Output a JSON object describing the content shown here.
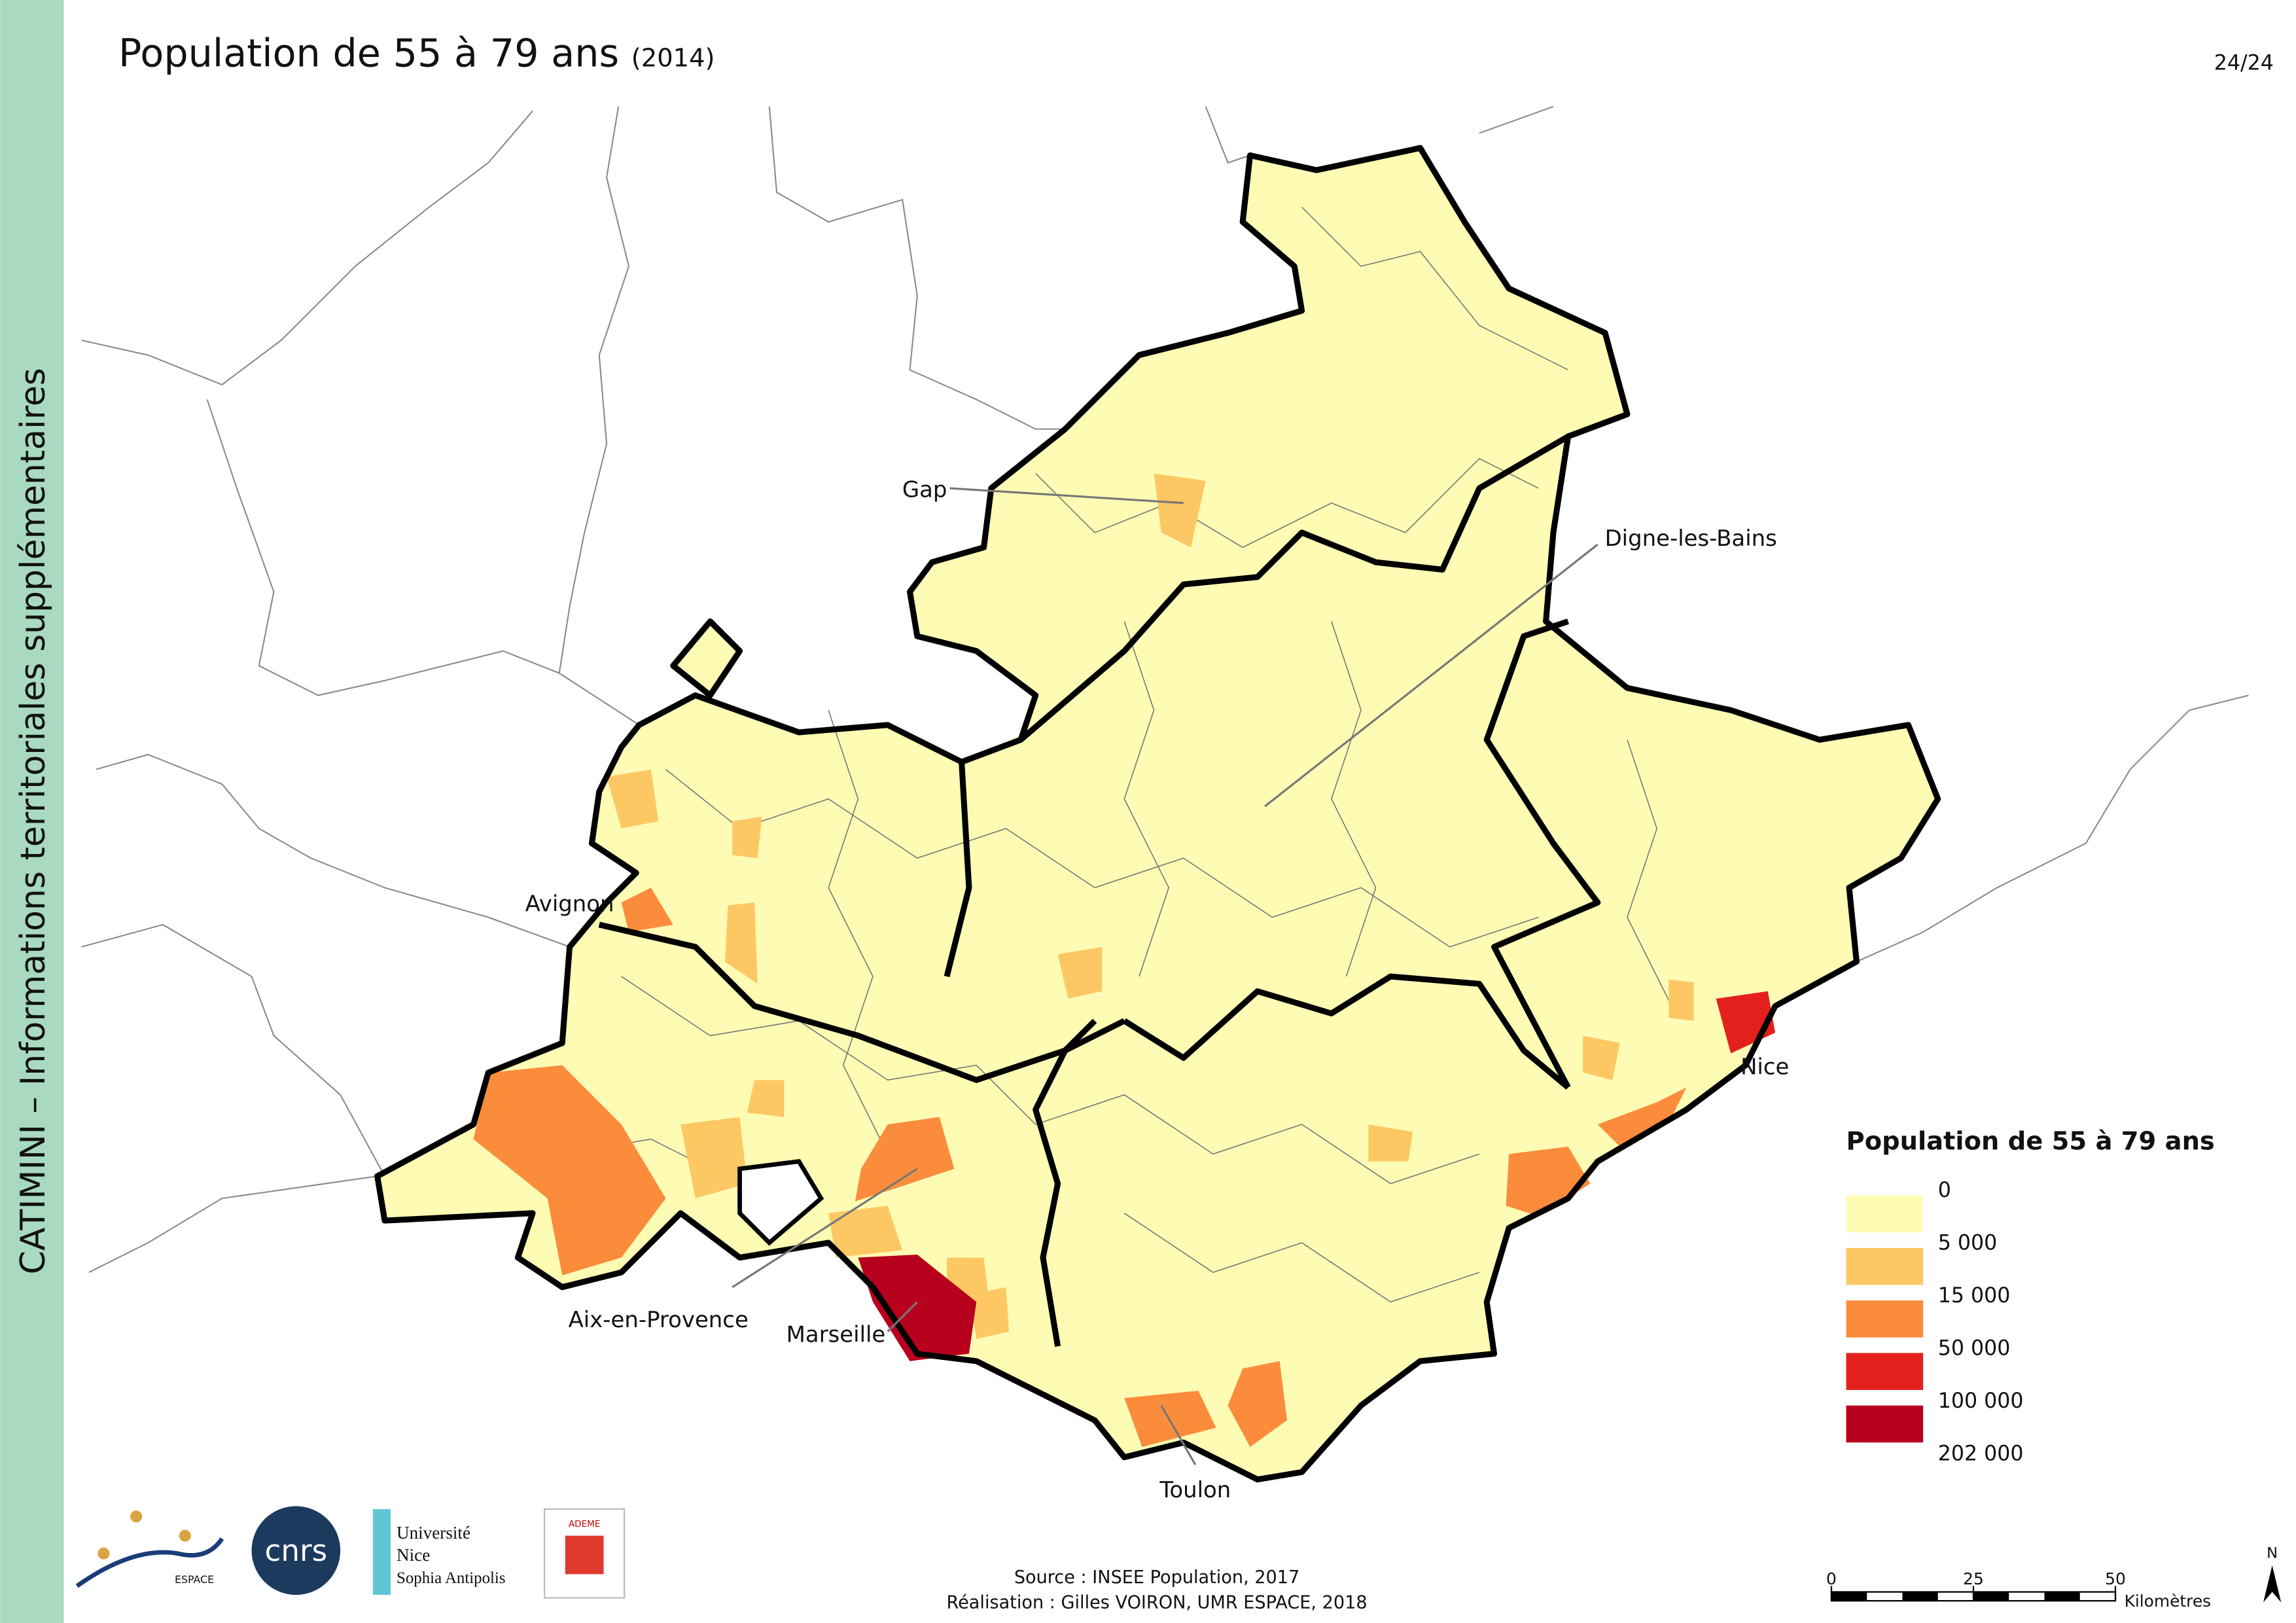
{
  "header": {
    "title": "Population de 55 à 79 ans",
    "subtitle": "(2014)",
    "page": "24/24"
  },
  "sidebar": "CATIMINI – Informations territoriales supplémentaires",
  "map": {
    "places": [
      "Gap",
      "Digne-les-Bains",
      "Avignon",
      "Nice",
      "Aix-en-Provence",
      "Marseille",
      "Toulon"
    ]
  },
  "legend": {
    "title": "Population de 55 à 79 ans",
    "breaks": [
      0,
      {
        "value": 5000,
        "label": "5 000"
      },
      {
        "value": 15000,
        "label": "15 000"
      },
      {
        "value": 50000,
        "label": "50 000"
      },
      {
        "value": 100000,
        "label": "100 000"
      },
      {
        "value": 202000,
        "label": "202 000"
      }
    ],
    "colors": [
      "#fefcb4",
      "#fdc864",
      "#fb8c3c",
      "#e3201c",
      "#b8001e"
    ]
  },
  "scale": {
    "ticks": [
      0,
      25,
      50
    ],
    "unit": "Kilomètres"
  },
  "north": "N",
  "footer": {
    "source": "Source : INSEE Population, 2017",
    "credit": "Réalisation : Gilles VOIRON, UMR ESPACE, 2018"
  },
  "logos": [
    "ESPACE",
    "cnrs",
    "Université",
    "Nice",
    "Sophia Antipolis",
    "ADEME"
  ]
}
